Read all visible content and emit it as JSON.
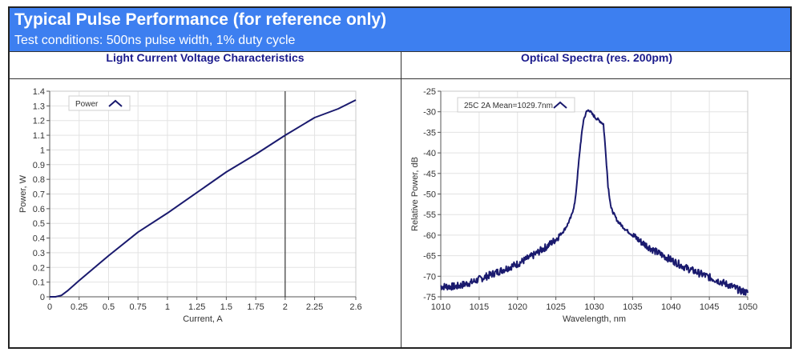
{
  "header": {
    "title": "Typical Pulse Performance (for reference only)",
    "subtitle": "Test conditions: 500ns pulse width, 1% duty cycle"
  },
  "colors": {
    "banner": "#3d7ff0",
    "series": "#1a1a6e",
    "panel_title": "#1a1a8c"
  },
  "chart_data": [
    {
      "type": "line",
      "title": "Light Current Voltage Characteristics",
      "xlabel": "Current, A",
      "ylabel": "Power, W",
      "xlim": [
        0,
        2.6
      ],
      "ylim": [
        0,
        1.4
      ],
      "xticks": [
        0,
        0.25,
        0.5,
        0.75,
        1,
        1.25,
        1.5,
        1.75,
        2,
        2.25,
        2.6
      ],
      "xtick_labels": [
        "0",
        "0.25",
        "0.5",
        "0.75",
        "1",
        "1.25",
        "1.5",
        "1.75",
        "2",
        "2.25",
        "2.6"
      ],
      "yticks": [
        0,
        0.1,
        0.2,
        0.3,
        0.4,
        0.5,
        0.6,
        0.7,
        0.8,
        0.9,
        1,
        1.1,
        1.2,
        1.3,
        1.4
      ],
      "ytick_labels": [
        "0",
        "0.1",
        "0.2",
        "0.3",
        "0.4",
        "0.5",
        "0.6",
        "0.7",
        "0.8",
        "0.9",
        "1",
        "1.1",
        "1.2",
        "1.3",
        "1.4"
      ],
      "grid": true,
      "legend": "top-left",
      "marker_x": 2,
      "series": [
        {
          "name": "Power",
          "x": [
            0,
            0.05,
            0.1,
            0.15,
            0.25,
            0.5,
            0.75,
            1.0,
            1.25,
            1.5,
            1.75,
            2.0,
            2.25,
            2.45,
            2.6
          ],
          "y": [
            0,
            0.0,
            0.01,
            0.04,
            0.11,
            0.28,
            0.44,
            0.57,
            0.71,
            0.85,
            0.97,
            1.1,
            1.22,
            1.28,
            1.34
          ]
        }
      ]
    },
    {
      "type": "line",
      "title": "Optical Spectra (res. 200pm)",
      "xlabel": "Wavelength, nm",
      "ylabel": "Relative Power, dB",
      "xlim": [
        1010,
        1050
      ],
      "ylim": [
        -75,
        -25
      ],
      "xticks": [
        1010,
        1015,
        1020,
        1025,
        1030,
        1035,
        1040,
        1045,
        1050
      ],
      "yticks": [
        -25,
        -30,
        -35,
        -40,
        -45,
        -50,
        -55,
        -60,
        -65,
        -70,
        -75
      ],
      "grid": true,
      "legend": "top-left",
      "series": [
        {
          "name": "25C 2A Mean=1029.7nm",
          "x": [
            1010,
            1012,
            1014,
            1016,
            1018,
            1020,
            1022,
            1024,
            1025,
            1026,
            1026.5,
            1027,
            1027.5,
            1027.8,
            1028.2,
            1028.6,
            1029.0,
            1029.3,
            1029.7,
            1030.2,
            1030.7,
            1031.2,
            1031.5,
            1031.8,
            1032.2,
            1033,
            1034,
            1035,
            1036,
            1038,
            1040,
            1042,
            1044,
            1046,
            1048,
            1049,
            1050
          ],
          "y": [
            -72.5,
            -72.5,
            -71.5,
            -70,
            -68.5,
            -67,
            -65,
            -62.5,
            -61,
            -59,
            -57.5,
            -55.5,
            -52,
            -46,
            -38,
            -32,
            -30,
            -29.5,
            -30.5,
            -31.5,
            -32.2,
            -33,
            -40,
            -48,
            -53.5,
            -56.5,
            -58.5,
            -60,
            -61.5,
            -64,
            -66,
            -68,
            -69.5,
            -71,
            -72.5,
            -73.5,
            -74
          ]
        }
      ]
    }
  ]
}
